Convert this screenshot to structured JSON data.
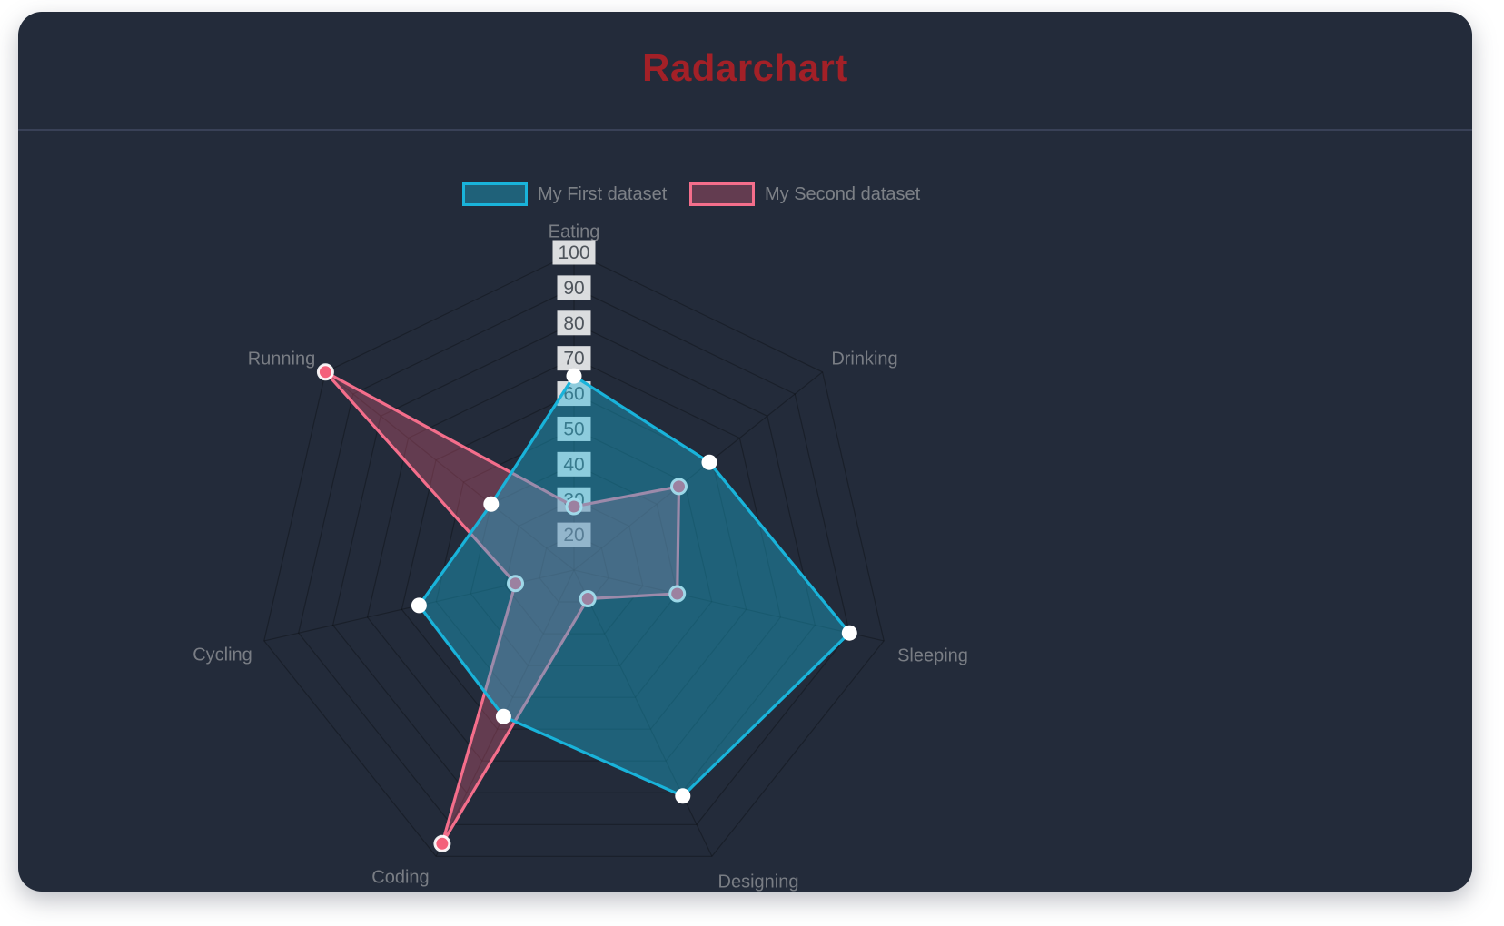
{
  "header": {
    "title": "Radarchart",
    "title_color": "#a32027"
  },
  "legend": {
    "position": "top",
    "items": [
      {
        "label": "My First dataset",
        "color": "#19b3da"
      },
      {
        "label": "My Second dataset",
        "color": "#f46e8b"
      }
    ]
  },
  "chart_data": {
    "type": "radar",
    "title": "Radarchart",
    "categories": [
      "Eating",
      "Drinking",
      "Sleeping",
      "Designing",
      "Coding",
      "Cycling",
      "Running"
    ],
    "series": [
      {
        "name": "My First dataset",
        "values": [
          65,
          59,
          90,
          81,
          56,
          55,
          40
        ],
        "line_color": "#19b3da",
        "fill_color": "rgba(25,179,218,0.40)",
        "point_fill": "#ffffff",
        "point_border": "rgba(255,255,255,0)",
        "point_radius": 8.5,
        "point_border_width": 0
      },
      {
        "name": "My Second dataset",
        "values": [
          28,
          48,
          40,
          19,
          96,
          27,
          100
        ],
        "line_color": "#f46e8b",
        "fill_color": "rgba(250,100,132,0.30)",
        "point_fill": "#f4607a",
        "point_border": "rgba(255,255,255,0.92)",
        "point_radius": 8,
        "point_border_width": 3
      }
    ],
    "scale": {
      "min": 10,
      "max": 100,
      "step": 10,
      "ticks": [
        20,
        30,
        40,
        50,
        60,
        70,
        80,
        90,
        100
      ],
      "tick_color": "#4f555c",
      "backdrop_color": "rgba(255,255,255,0.84)"
    },
    "grid": {
      "shape": "polygon",
      "axes": 7,
      "color": "rgba(0,0,0,0.28)"
    },
    "axis_label_color": "#797d84",
    "legend_position": "top"
  }
}
